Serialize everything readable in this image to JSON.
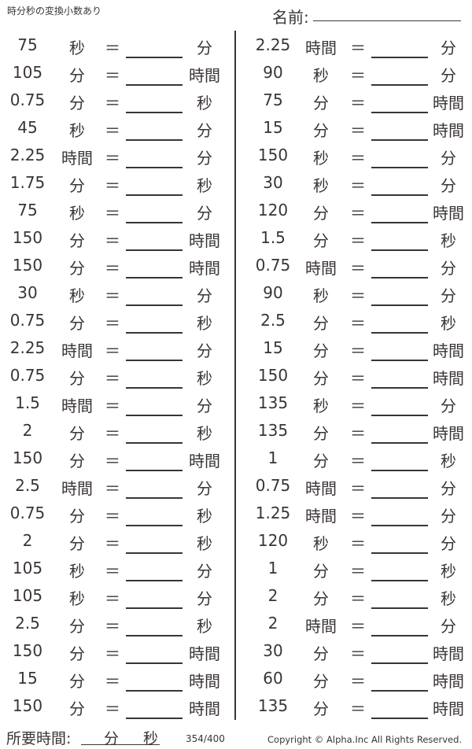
{
  "header": {
    "title": "時分秒の変換小数あり",
    "name_label": "名前:"
  },
  "left": [
    {
      "num": "75",
      "unit": "秒",
      "eq": "＝",
      "res": "分"
    },
    {
      "num": "105",
      "unit": "分",
      "eq": "＝",
      "res": "時間"
    },
    {
      "num": "0.75",
      "unit": "分",
      "eq": "＝",
      "res": "秒"
    },
    {
      "num": "45",
      "unit": "秒",
      "eq": "＝",
      "res": "分"
    },
    {
      "num": "2.25",
      "unit": "時間",
      "eq": "＝",
      "res": "分"
    },
    {
      "num": "1.75",
      "unit": "分",
      "eq": "＝",
      "res": "秒"
    },
    {
      "num": "75",
      "unit": "秒",
      "eq": "＝",
      "res": "分"
    },
    {
      "num": "150",
      "unit": "分",
      "eq": "＝",
      "res": "時間"
    },
    {
      "num": "150",
      "unit": "分",
      "eq": "＝",
      "res": "時間"
    },
    {
      "num": "30",
      "unit": "秒",
      "eq": "＝",
      "res": "分"
    },
    {
      "num": "0.75",
      "unit": "分",
      "eq": "＝",
      "res": "秒"
    },
    {
      "num": "2.25",
      "unit": "時間",
      "eq": "＝",
      "res": "分"
    },
    {
      "num": "0.75",
      "unit": "分",
      "eq": "＝",
      "res": "秒"
    },
    {
      "num": "1.5",
      "unit": "時間",
      "eq": "＝",
      "res": "分"
    },
    {
      "num": "2",
      "unit": "分",
      "eq": "＝",
      "res": "秒"
    },
    {
      "num": "150",
      "unit": "分",
      "eq": "＝",
      "res": "時間"
    },
    {
      "num": "2.5",
      "unit": "時間",
      "eq": "＝",
      "res": "分"
    },
    {
      "num": "0.75",
      "unit": "分",
      "eq": "＝",
      "res": "秒"
    },
    {
      "num": "2",
      "unit": "分",
      "eq": "＝",
      "res": "秒"
    },
    {
      "num": "105",
      "unit": "秒",
      "eq": "＝",
      "res": "分"
    },
    {
      "num": "105",
      "unit": "秒",
      "eq": "＝",
      "res": "分"
    },
    {
      "num": "2.5",
      "unit": "分",
      "eq": "＝",
      "res": "秒"
    },
    {
      "num": "150",
      "unit": "分",
      "eq": "＝",
      "res": "時間"
    },
    {
      "num": "15",
      "unit": "分",
      "eq": "＝",
      "res": "時間"
    },
    {
      "num": "150",
      "unit": "分",
      "eq": "＝",
      "res": "時間"
    }
  ],
  "right": [
    {
      "num": "2.25",
      "unit": "時間",
      "eq": "＝",
      "res": "分"
    },
    {
      "num": "90",
      "unit": "秒",
      "eq": "＝",
      "res": "分"
    },
    {
      "num": "75",
      "unit": "分",
      "eq": "＝",
      "res": "時間"
    },
    {
      "num": "15",
      "unit": "分",
      "eq": "＝",
      "res": "時間"
    },
    {
      "num": "150",
      "unit": "秒",
      "eq": "＝",
      "res": "分"
    },
    {
      "num": "30",
      "unit": "秒",
      "eq": "＝",
      "res": "分"
    },
    {
      "num": "120",
      "unit": "分",
      "eq": "＝",
      "res": "時間"
    },
    {
      "num": "1.5",
      "unit": "分",
      "eq": "＝",
      "res": "秒"
    },
    {
      "num": "0.75",
      "unit": "時間",
      "eq": "＝",
      "res": "分"
    },
    {
      "num": "90",
      "unit": "秒",
      "eq": "＝",
      "res": "分"
    },
    {
      "num": "2.5",
      "unit": "分",
      "eq": "＝",
      "res": "秒"
    },
    {
      "num": "15",
      "unit": "分",
      "eq": "＝",
      "res": "時間"
    },
    {
      "num": "150",
      "unit": "分",
      "eq": "＝",
      "res": "時間"
    },
    {
      "num": "135",
      "unit": "秒",
      "eq": "＝",
      "res": "分"
    },
    {
      "num": "135",
      "unit": "分",
      "eq": "＝",
      "res": "時間"
    },
    {
      "num": "1",
      "unit": "分",
      "eq": "＝",
      "res": "秒"
    },
    {
      "num": "0.75",
      "unit": "時間",
      "eq": "＝",
      "res": "分"
    },
    {
      "num": "1.25",
      "unit": "時間",
      "eq": "＝",
      "res": "分"
    },
    {
      "num": "120",
      "unit": "秒",
      "eq": "＝",
      "res": "分"
    },
    {
      "num": "1",
      "unit": "分",
      "eq": "＝",
      "res": "秒"
    },
    {
      "num": "2",
      "unit": "分",
      "eq": "＝",
      "res": "秒"
    },
    {
      "num": "2",
      "unit": "時間",
      "eq": "＝",
      "res": "分"
    },
    {
      "num": "30",
      "unit": "分",
      "eq": "＝",
      "res": "時間"
    },
    {
      "num": "60",
      "unit": "分",
      "eq": "＝",
      "res": "時間"
    },
    {
      "num": "135",
      "unit": "分",
      "eq": "＝",
      "res": "時間"
    }
  ],
  "footer": {
    "time_label": "所要時間:",
    "min_label": "分",
    "sec_label": "秒",
    "page": "354/400",
    "copyright": "Copyright © Alpha.Inc All Rights Reserved."
  }
}
